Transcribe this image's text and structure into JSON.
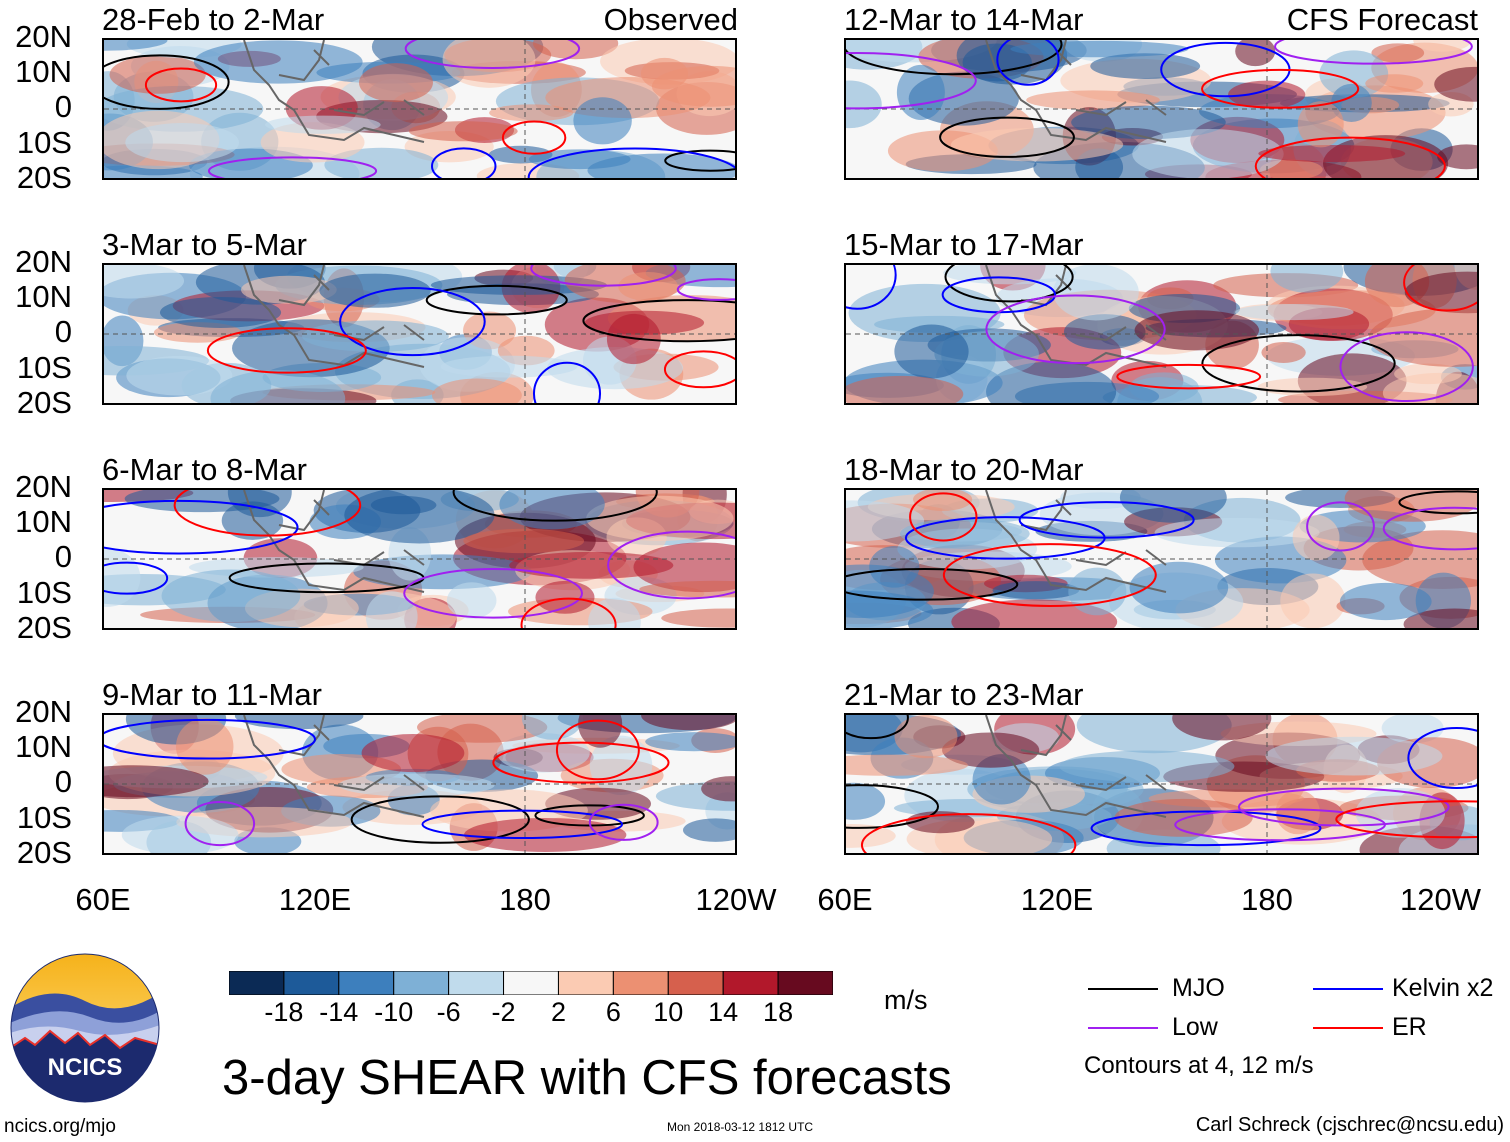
{
  "panels_left": [
    {
      "title": "28-Feb to 2-Mar",
      "tag": "Observed"
    },
    {
      "title": "3-Mar to 5-Mar",
      "tag": ""
    },
    {
      "title": "6-Mar to 8-Mar",
      "tag": ""
    },
    {
      "title": "9-Mar to 11-Mar",
      "tag": ""
    }
  ],
  "panels_right": [
    {
      "title": "12-Mar to 14-Mar",
      "tag": "CFS Forecast"
    },
    {
      "title": "15-Mar to 17-Mar",
      "tag": ""
    },
    {
      "title": "18-Mar to 20-Mar",
      "tag": ""
    },
    {
      "title": "21-Mar to 23-Mar",
      "tag": ""
    }
  ],
  "lat_labels": [
    "20N",
    "10N",
    "0",
    "10S",
    "20S"
  ],
  "lon_labels": [
    "60E",
    "120E",
    "180",
    "120W"
  ],
  "colorbar": {
    "labels": [
      "-18",
      "-14",
      "-10",
      "-6",
      "-2",
      "2",
      "6",
      "10",
      "14",
      "18"
    ],
    "colors": [
      "#0b2a55",
      "#1d5a99",
      "#3d7fbd",
      "#7eb0d6",
      "#c0dbec",
      "#f7f7f7",
      "#fbcbb3",
      "#ec9072",
      "#d6604d",
      "#b2182b",
      "#670a1f"
    ],
    "units": "m/s"
  },
  "legend": {
    "items": [
      {
        "label": "MJO",
        "color": "#000000"
      },
      {
        "label": "Kelvin x2",
        "color": "#0000ff"
      },
      {
        "label": "Low",
        "color": "#a020f0"
      },
      {
        "label": "ER",
        "color": "#ff0000"
      }
    ],
    "note": "Contours at 4, 12 m/s"
  },
  "title": "3-day SHEAR with CFS forecasts",
  "logo_text": "NCICS",
  "footer": {
    "left": "ncics.org/mjo",
    "middle": "Mon 2018-03-12 1812 UTC",
    "right": "Carl Schreck (cjschrec@ncsu.edu)"
  }
}
